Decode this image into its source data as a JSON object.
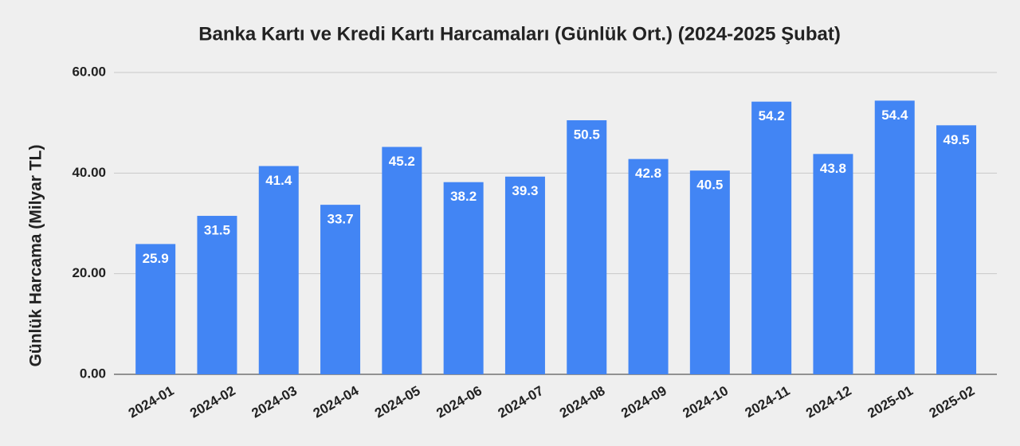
{
  "chart_data": {
    "type": "bar",
    "title": "Banka Kartı ve Kredi Kartı Harcamaları (Günlük Ort.) (2024-2025 Şubat)",
    "y_label": "Günlük Harcama (Milyar TL)",
    "categories": [
      "2024-01",
      "2024-02",
      "2024-03",
      "2024-04",
      "2024-05",
      "2024-06",
      "2024-07",
      "2024-08",
      "2024-09",
      "2024-10",
      "2024-11",
      "2024-12",
      "2025-01",
      "2025-02"
    ],
    "values": [
      25.9,
      31.5,
      41.4,
      33.7,
      45.2,
      38.2,
      39.3,
      50.5,
      42.8,
      40.5,
      54.2,
      43.8,
      54.4,
      49.5
    ],
    "color": "#4285f4",
    "ylim": [
      0,
      60
    ],
    "yticks": [
      {
        "value": 0,
        "label": "0.00"
      },
      {
        "value": 20,
        "label": "20.00"
      },
      {
        "value": 40,
        "label": "40.00"
      },
      {
        "value": 60,
        "label": "60.00"
      }
    ],
    "grid": true
  }
}
